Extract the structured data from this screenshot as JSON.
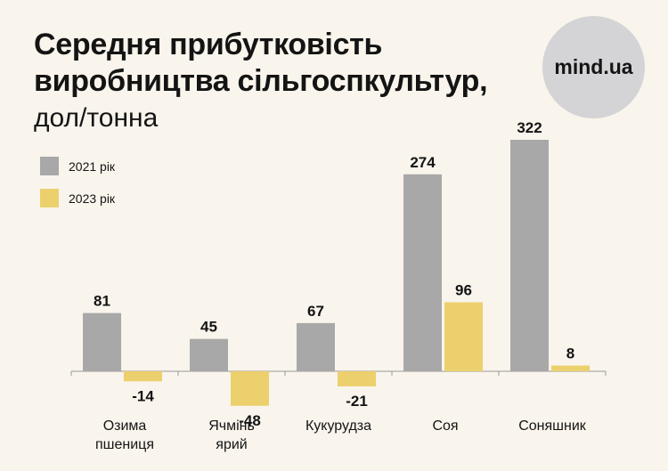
{
  "header": {
    "title_line1": "Середня прибутковість",
    "title_line2": "виробництва сільгоспкультур,",
    "subtitle": "дол/тонна"
  },
  "logo": {
    "text": "mind.ua"
  },
  "colors": {
    "series_2021": "#a8a8a8",
    "series_2023": "#ecd06e",
    "background": "#f9f4ec",
    "axis": "#9a9a9a"
  },
  "chart_data": {
    "type": "bar",
    "title": "Середня прибутковість виробництва сільгоспкультур, дол/тонна",
    "categories": [
      [
        "Озима",
        "пшениця"
      ],
      [
        "Ячмінь",
        "ярий"
      ],
      [
        "Кукурудза"
      ],
      [
        "Соя"
      ],
      [
        "Соняшник"
      ]
    ],
    "series": [
      {
        "name": "2021 рік",
        "values": [
          81,
          45,
          67,
          274,
          322
        ]
      },
      {
        "name": "2023 рік",
        "values": [
          -14,
          -48,
          -21,
          96,
          8
        ]
      }
    ],
    "ylim": [
      -48,
      322
    ],
    "legend_position": "top-left",
    "xlabel": "",
    "ylabel": ""
  }
}
